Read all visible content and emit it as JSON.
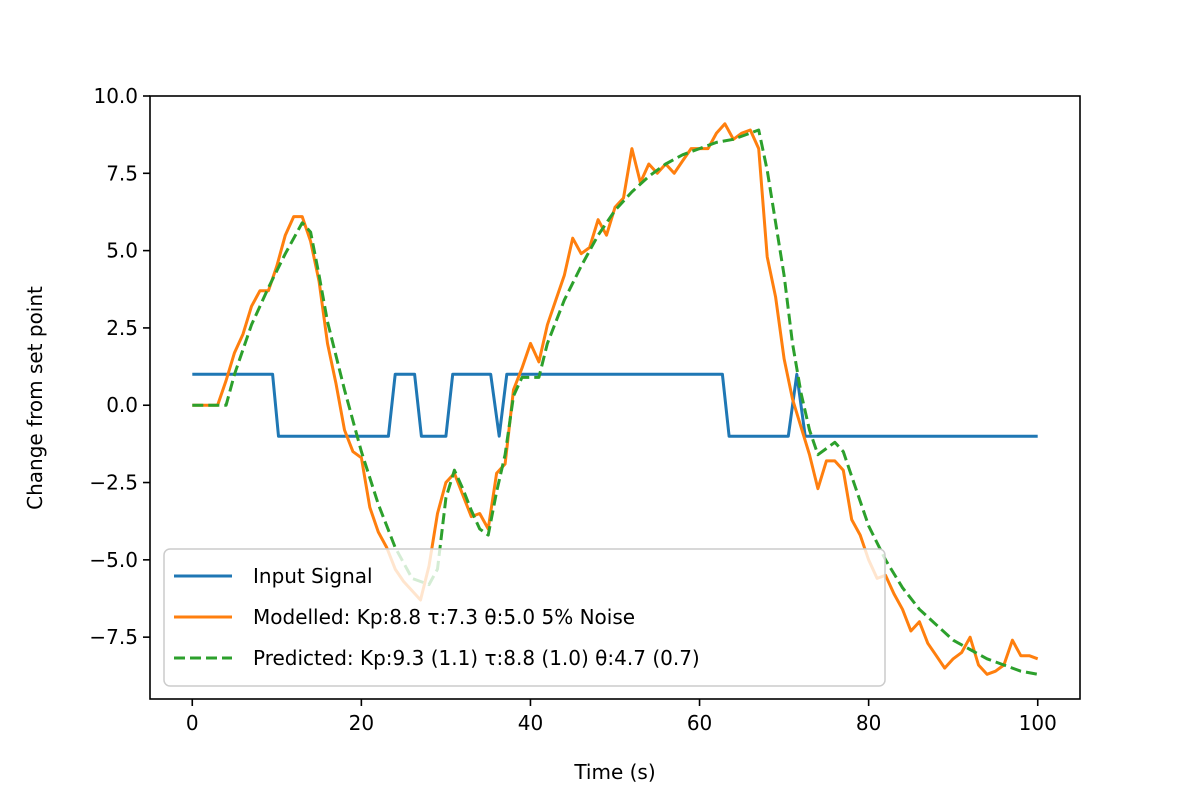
{
  "chart_data": {
    "type": "line",
    "title": "",
    "xlabel": "Time (s)",
    "ylabel": "Change from set point",
    "xlim": [
      -5,
      105
    ],
    "ylim": [
      -9.5,
      10.0
    ],
    "xticks": [
      0,
      20,
      40,
      60,
      80,
      100
    ],
    "xtick_labels": [
      "0",
      "20",
      "40",
      "60",
      "80",
      "100"
    ],
    "yticks": [
      -7.5,
      -5.0,
      -2.5,
      0.0,
      2.5,
      5.0,
      7.5,
      10.0
    ],
    "ytick_labels": [
      "−7.5",
      "−5.0",
      "−2.5",
      "0.0",
      "2.5",
      "5.0",
      "7.5",
      "10.0"
    ],
    "grid": false,
    "legend_position": "lower-left",
    "series": [
      {
        "name": "Input Signal",
        "color": "#1f77b4",
        "style": "solid",
        "x": [
          0,
          9.5,
          10.2,
          23.2,
          24.0,
          26.3,
          27.1,
          30.0,
          30.8,
          35.3,
          36.3,
          37.2,
          62.7,
          63.5,
          70.5,
          71.5,
          72.5,
          100
        ],
        "y": [
          1,
          1,
          -1,
          -1,
          1,
          1,
          -1,
          -1,
          1,
          1,
          -1,
          1,
          1,
          -1,
          -1,
          1,
          -1,
          -1
        ]
      },
      {
        "name": "Modelled: Kp:8.8 τ:7.3 θ:5.0  5% Noise",
        "color": "#ff7f0e",
        "style": "solid",
        "x": [
          0,
          1,
          2,
          3,
          4,
          5,
          6,
          7,
          8,
          9,
          10,
          11,
          12,
          13,
          14,
          15,
          16,
          17,
          18,
          19,
          20,
          21,
          22,
          23,
          24,
          25,
          26,
          27,
          28,
          29,
          30,
          31,
          32,
          33,
          34,
          35,
          36,
          37,
          38,
          39,
          40,
          41,
          42,
          43,
          44,
          45,
          46,
          47,
          48,
          49,
          50,
          51,
          52,
          53,
          54,
          55,
          56,
          57,
          58,
          59,
          60,
          61,
          62,
          63,
          64,
          65,
          66,
          67,
          68,
          69,
          70,
          71,
          72,
          73,
          74,
          75,
          76,
          77,
          78,
          79,
          80,
          81,
          82,
          83,
          84,
          85,
          86,
          87,
          88,
          89,
          90,
          91,
          92,
          93,
          94,
          95,
          96,
          97,
          98,
          99,
          100
        ],
        "y": [
          0.0,
          0.0,
          0.0,
          0.0,
          0.8,
          1.7,
          2.3,
          3.2,
          3.7,
          3.7,
          4.5,
          5.5,
          6.1,
          6.1,
          5.3,
          4.0,
          2.0,
          0.7,
          -0.8,
          -1.5,
          -1.7,
          -3.3,
          -4.1,
          -4.6,
          -5.3,
          -5.7,
          -6.0,
          -6.3,
          -5.2,
          -3.5,
          -2.5,
          -2.2,
          -2.9,
          -3.6,
          -3.5,
          -4.0,
          -2.2,
          -1.9,
          0.5,
          1.2,
          2.0,
          1.4,
          2.6,
          3.4,
          4.2,
          5.4,
          4.9,
          5.1,
          6.0,
          5.5,
          6.4,
          6.7,
          8.3,
          7.2,
          7.8,
          7.5,
          7.8,
          7.5,
          7.9,
          8.3,
          8.3,
          8.3,
          8.8,
          9.1,
          8.6,
          8.8,
          8.9,
          8.3,
          4.8,
          3.5,
          1.5,
          0.2,
          -0.7,
          -1.6,
          -2.7,
          -1.8,
          -1.8,
          -2.1,
          -3.7,
          -4.2,
          -5.0,
          -5.6,
          -5.5,
          -6.1,
          -6.6,
          -7.3,
          -7.0,
          -7.7,
          -8.1,
          -8.5,
          -8.2,
          -8.0,
          -7.5,
          -8.4,
          -8.7,
          -8.6,
          -8.4,
          -7.6,
          -8.1,
          -8.1,
          -8.2
        ]
      },
      {
        "name": "Predicted: Kp:9.3 (1.1) τ:8.8 (1.0) θ:4.7 (0.7)",
        "color": "#2ca02c",
        "style": "dashed",
        "x": [
          0,
          4,
          5,
          7,
          9,
          11,
          13,
          14,
          15,
          16,
          18,
          20,
          22,
          24,
          26,
          28,
          29,
          30,
          31,
          32,
          33,
          34,
          35,
          36,
          37,
          38,
          39,
          41,
          42,
          44,
          46,
          48,
          50,
          52,
          54,
          56,
          58,
          60,
          62,
          64,
          66,
          67,
          68,
          70,
          71,
          72,
          73,
          74,
          75,
          76,
          77,
          78,
          80,
          82,
          84,
          86,
          88,
          90,
          92,
          94,
          96,
          98,
          100
        ],
        "y": [
          0.0,
          0.0,
          1.0,
          2.6,
          3.8,
          4.9,
          5.9,
          5.6,
          4.2,
          2.7,
          0.5,
          -1.5,
          -3.2,
          -4.6,
          -5.6,
          -5.8,
          -5.3,
          -3.0,
          -2.1,
          -2.7,
          -3.4,
          -4.0,
          -4.2,
          -2.8,
          -1.6,
          0.3,
          0.9,
          0.9,
          2.0,
          3.4,
          4.5,
          5.5,
          6.3,
          6.9,
          7.4,
          7.8,
          8.1,
          8.3,
          8.5,
          8.6,
          8.8,
          8.9,
          7.6,
          4.2,
          2.0,
          0.4,
          -0.8,
          -1.6,
          -1.4,
          -1.2,
          -1.5,
          -2.3,
          -3.9,
          -5.0,
          -5.9,
          -6.6,
          -7.1,
          -7.6,
          -7.9,
          -8.2,
          -8.4,
          -8.6,
          -8.7
        ]
      }
    ]
  }
}
